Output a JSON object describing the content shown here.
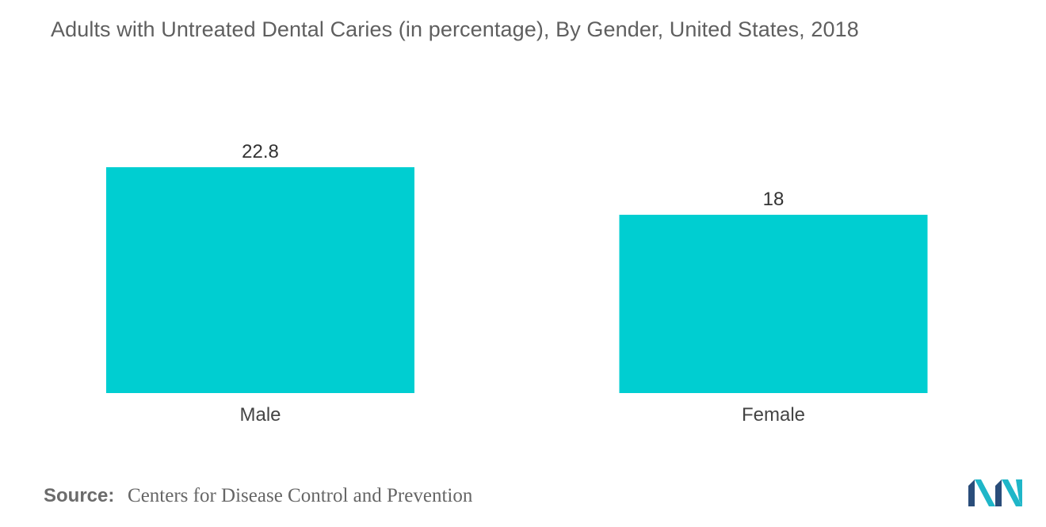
{
  "title": "Adults with Untreated Dental Caries (in percentage), By Gender, United States, 2018",
  "source": {
    "label": "Source:",
    "text": "Centers for Disease Control and Prevention"
  },
  "logo": {
    "icon": "mordor-intelligence-logo-icon",
    "colors": [
      "#1fb6c8",
      "#2a4d7a"
    ]
  },
  "chart_data": {
    "type": "bar",
    "categories": [
      "Male",
      "Female"
    ],
    "values": [
      22.8,
      18
    ],
    "data_labels": [
      "22.8",
      "18"
    ],
    "bar_color": "#00ced1",
    "grid": false,
    "legend": "none",
    "ylim": [
      0,
      22.8
    ]
  }
}
